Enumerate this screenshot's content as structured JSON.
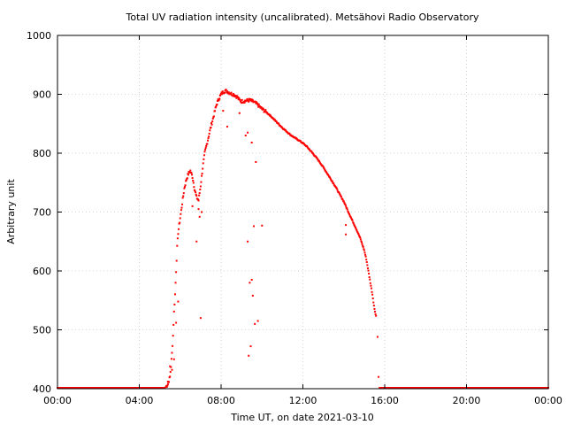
{
  "chart_data": {
    "type": "scatter",
    "title": "Total UV radiation intensity (uncalibrated). Metsähovi Radio Observatory",
    "xlabel": "Time UT, on date 2021-03-10",
    "ylabel": "Arbitrary unit",
    "xlim": [
      "00:00",
      "24:00"
    ],
    "ylim": [
      400,
      1000
    ],
    "x_ticks": [
      "00:00",
      "04:00",
      "08:00",
      "12:00",
      "16:00",
      "20:00",
      "00:00"
    ],
    "y_ticks": [
      "400",
      "500",
      "600",
      "700",
      "800",
      "900",
      "1000"
    ],
    "grid": true,
    "point_color": "#ff0000",
    "series": [
      {
        "x_unit": "hours UT",
        "baseline_segments": [
          {
            "x_start": 0.0,
            "x_end": 5.25,
            "y": 400
          },
          {
            "x_start": 15.75,
            "x_end": 24.0,
            "y": 400
          }
        ],
        "main_curve": [
          [
            5.3,
            403
          ],
          [
            5.4,
            408
          ],
          [
            5.5,
            420
          ],
          [
            5.55,
            438
          ],
          [
            5.6,
            460
          ],
          [
            5.65,
            490
          ],
          [
            5.7,
            530
          ],
          [
            5.75,
            560
          ],
          [
            5.8,
            600
          ],
          [
            5.85,
            640
          ],
          [
            5.9,
            665
          ],
          [
            6.0,
            690
          ],
          [
            6.1,
            715
          ],
          [
            6.2,
            740
          ],
          [
            6.3,
            755
          ],
          [
            6.4,
            765
          ],
          [
            6.5,
            770
          ],
          [
            6.6,
            760
          ],
          [
            6.7,
            740
          ],
          [
            6.8,
            725
          ],
          [
            6.9,
            720
          ],
          [
            7.0,
            745
          ],
          [
            7.1,
            775
          ],
          [
            7.2,
            800
          ],
          [
            7.3,
            815
          ],
          [
            7.4,
            830
          ],
          [
            7.5,
            845
          ],
          [
            7.6,
            858
          ],
          [
            7.7,
            872
          ],
          [
            7.8,
            885
          ],
          [
            7.9,
            893
          ],
          [
            8.0,
            900
          ],
          [
            8.1,
            904
          ],
          [
            8.2,
            906
          ],
          [
            8.3,
            905
          ],
          [
            8.4,
            903
          ],
          [
            8.5,
            901
          ],
          [
            8.6,
            900
          ],
          [
            8.7,
            898
          ],
          [
            8.8,
            895
          ],
          [
            8.9,
            890
          ],
          [
            9.0,
            888
          ],
          [
            9.2,
            889
          ],
          [
            9.4,
            890
          ],
          [
            9.6,
            887
          ],
          [
            9.8,
            882
          ],
          [
            10.0,
            875
          ],
          [
            10.2,
            870
          ],
          [
            10.4,
            864
          ],
          [
            10.6,
            857
          ],
          [
            10.8,
            850
          ],
          [
            11.0,
            843
          ],
          [
            11.2,
            837
          ],
          [
            11.4,
            831
          ],
          [
            11.6,
            826
          ],
          [
            11.8,
            822
          ],
          [
            12.0,
            817
          ],
          [
            12.2,
            811
          ],
          [
            12.4,
            803
          ],
          [
            12.6,
            795
          ],
          [
            12.8,
            786
          ],
          [
            13.0,
            776
          ],
          [
            13.2,
            765
          ],
          [
            13.4,
            754
          ],
          [
            13.6,
            743
          ],
          [
            13.8,
            730
          ],
          [
            14.0,
            718
          ],
          [
            14.2,
            702
          ],
          [
            14.4,
            687
          ],
          [
            14.6,
            672
          ],
          [
            14.8,
            656
          ],
          [
            15.0,
            635
          ],
          [
            15.1,
            620
          ],
          [
            15.2,
            600
          ],
          [
            15.3,
            580
          ],
          [
            15.4,
            560
          ],
          [
            15.5,
            535
          ],
          [
            15.6,
            520
          ]
        ],
        "outliers": [
          [
            5.4,
            412
          ],
          [
            5.5,
            438
          ],
          [
            5.6,
            432
          ],
          [
            5.7,
            450
          ],
          [
            5.8,
            512
          ],
          [
            5.9,
            548
          ],
          [
            6.8,
            650
          ],
          [
            6.95,
            692
          ],
          [
            7.0,
            520
          ],
          [
            7.05,
            700
          ],
          [
            6.6,
            710
          ],
          [
            6.9,
            705
          ],
          [
            8.3,
            845
          ],
          [
            8.1,
            872
          ],
          [
            8.9,
            868
          ],
          [
            9.2,
            830
          ],
          [
            9.3,
            650
          ],
          [
            9.35,
            456
          ],
          [
            9.4,
            580
          ],
          [
            9.45,
            472
          ],
          [
            9.5,
            585
          ],
          [
            9.55,
            558
          ],
          [
            9.6,
            676
          ],
          [
            9.65,
            510
          ],
          [
            9.7,
            785
          ],
          [
            9.8,
            515
          ],
          [
            10.0,
            677
          ],
          [
            14.1,
            662
          ],
          [
            14.1,
            678
          ],
          [
            15.65,
            488
          ],
          [
            15.7,
            420
          ],
          [
            9.5,
            818
          ],
          [
            9.3,
            835
          ]
        ]
      }
    ]
  }
}
